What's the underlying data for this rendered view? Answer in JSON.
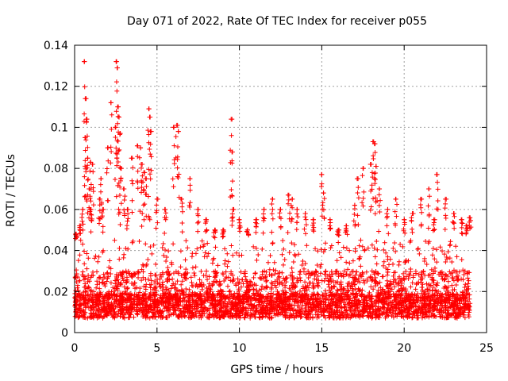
{
  "chart_data": {
    "type": "scatter",
    "title": "Day 071 of 2022, Rate Of TEC Index for receiver p055",
    "xlabel": "GPS time / hours",
    "ylabel": "ROTI / TECUs",
    "xlim": [
      0,
      25
    ],
    "ylim": [
      0,
      0.14
    ],
    "x_ticks": [
      0,
      5,
      10,
      15,
      20,
      25
    ],
    "x_tick_labels": [
      "0",
      "5",
      "10",
      "15",
      "20",
      "25"
    ],
    "y_ticks": [
      0,
      0.02,
      0.04,
      0.06,
      0.08,
      0.1,
      0.12,
      0.14
    ],
    "y_tick_labels": [
      "0",
      "0.02",
      "0.04",
      "0.06",
      "0.08",
      "0.1",
      "0.12",
      "0.14"
    ],
    "grid": true,
    "marker": "+",
    "marker_color": "#ff0000",
    "series": [
      {
        "name": "ROTI",
        "x": [
          0.1,
          0.3,
          0.5,
          0.6,
          0.65,
          0.7,
          0.75,
          0.8,
          0.9,
          0.95,
          1.0,
          1.1,
          1.5,
          1.6,
          1.7,
          2.0,
          2.2,
          2.5,
          2.55,
          2.6,
          2.65,
          2.7,
          2.75,
          2.8,
          3.0,
          3.2,
          3.5,
          3.8,
          4.0,
          4.1,
          4.2,
          4.3,
          4.5,
          4.55,
          4.6,
          5.0,
          5.5,
          6.0,
          6.2,
          6.3,
          6.5,
          7.0,
          7.5,
          8.0,
          8.5,
          9.0,
          9.5,
          9.55,
          9.6,
          10.0,
          10.5,
          11.0,
          11.5,
          12.0,
          12.5,
          13.0,
          13.2,
          13.5,
          14.0,
          14.5,
          15.0,
          15.1,
          15.5,
          16.0,
          16.5,
          17.0,
          17.2,
          17.5,
          18.0,
          18.1,
          18.2,
          18.3,
          18.5,
          19.0,
          19.5,
          20.0,
          20.5,
          21.0,
          21.5,
          21.8,
          22.0,
          22.5,
          23.0,
          23.5,
          23.8,
          24.0
        ],
        "y": [
          0.048,
          0.052,
          0.06,
          0.132,
          0.095,
          0.114,
          0.104,
          0.085,
          0.07,
          0.083,
          0.06,
          0.082,
          0.065,
          0.075,
          0.06,
          0.09,
          0.112,
          0.1,
          0.132,
          0.129,
          0.11,
          0.105,
          0.097,
          0.08,
          0.07,
          0.06,
          0.085,
          0.091,
          0.09,
          0.082,
          0.078,
          0.075,
          0.109,
          0.105,
          0.098,
          0.065,
          0.06,
          0.1,
          0.101,
          0.098,
          0.065,
          0.075,
          0.06,
          0.055,
          0.05,
          0.05,
          0.104,
          0.088,
          0.06,
          0.055,
          0.05,
          0.055,
          0.06,
          0.065,
          0.06,
          0.067,
          0.065,
          0.06,
          0.058,
          0.055,
          0.077,
          0.068,
          0.055,
          0.05,
          0.052,
          0.062,
          0.075,
          0.08,
          0.082,
          0.093,
          0.092,
          0.081,
          0.07,
          0.06,
          0.065,
          0.055,
          0.058,
          0.065,
          0.07,
          0.055,
          0.077,
          0.065,
          0.058,
          0.055,
          0.052,
          0.056
        ]
      }
    ],
    "base_band": {
      "description": "dense noise floor of ROTI values across the full day",
      "x_range": [
        0,
        24
      ],
      "y_range": [
        0.003,
        0.045
      ],
      "typical": 0.015
    }
  }
}
